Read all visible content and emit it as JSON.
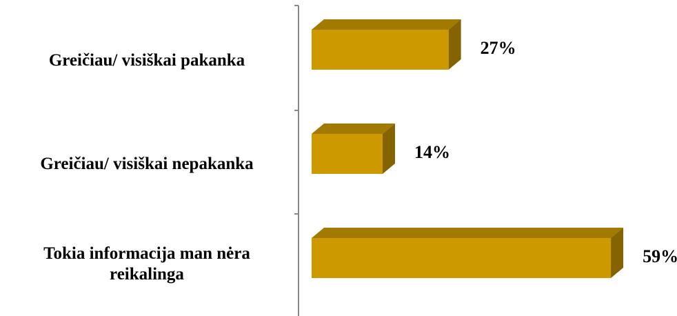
{
  "chart_data": {
    "type": "bar3d_horizontal",
    "categories": [
      "Greičiau/ visiškai pakanka",
      "Greičiau/ visiškai nepakanka",
      "Tokia informacija man nėra reikalinga"
    ],
    "values": [
      27,
      14,
      59
    ],
    "value_labels": [
      "27%",
      "14%",
      "59%"
    ],
    "color": "#cc9900",
    "xlim": [
      0,
      70
    ]
  }
}
